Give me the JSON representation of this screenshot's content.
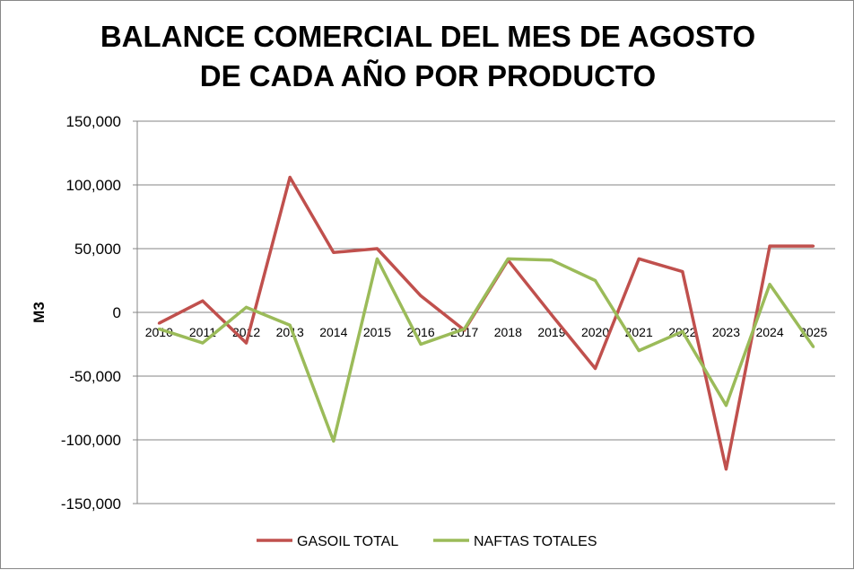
{
  "chart_data": {
    "type": "line",
    "title_line1": "BALANCE COMERCIAL DEL MES DE AGOSTO",
    "title_line2": "DE CADA AÑO POR PRODUCTO",
    "xlabel": "",
    "ylabel": "M3",
    "ylim": [
      -150000,
      150000
    ],
    "yticks": [
      150000,
      100000,
      50000,
      0,
      -50000,
      -100000,
      -150000
    ],
    "ytick_labels": [
      "150,000",
      "100,000",
      "50,000",
      "0",
      "-50,000",
      "-100,000",
      "-150,000"
    ],
    "categories": [
      "2010",
      "2011",
      "2012",
      "2013",
      "2014",
      "2015",
      "2016",
      "2017",
      "2018",
      "2019",
      "2020",
      "2021",
      "2022",
      "2023",
      "2024",
      "2025"
    ],
    "grid": true,
    "legend_position": "bottom",
    "series": [
      {
        "name": "GASOIL TOTAL",
        "color": "#C0504D",
        "values": [
          -8500,
          9000,
          -24000,
          106000,
          47000,
          50000,
          13000,
          -14000,
          41000,
          -2000,
          -44000,
          42000,
          32000,
          -123000,
          52000,
          52000
        ]
      },
      {
        "name": "NAFTAS TOTALES",
        "color": "#9BBB59",
        "values": [
          -13000,
          -24000,
          4000,
          -10000,
          -101000,
          42000,
          -25000,
          -13000,
          42000,
          41000,
          25000,
          -30000,
          -15000,
          -73000,
          22000,
          -27000
        ]
      }
    ]
  }
}
